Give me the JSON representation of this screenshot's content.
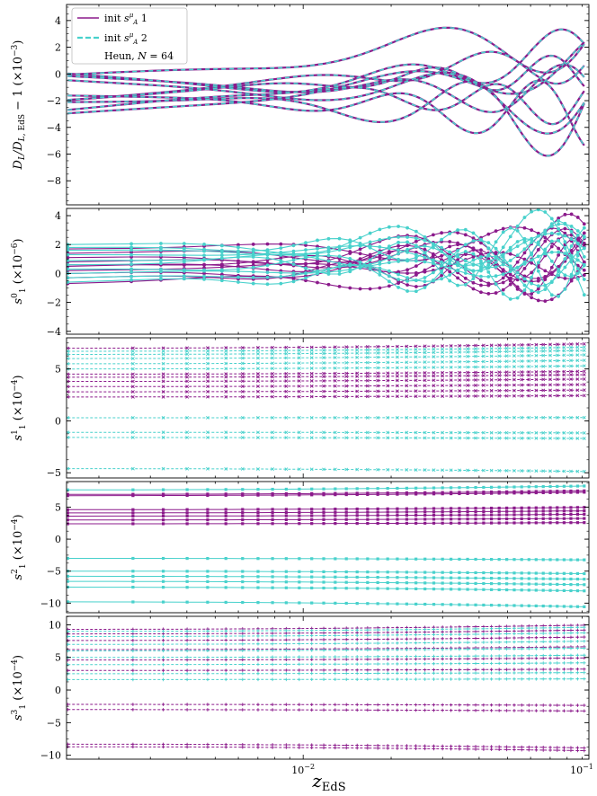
{
  "figure": {
    "xlabel_main": "z",
    "xlabel_sub": "EdS",
    "xscale": "log",
    "xlim": [
      0.00155,
      0.095
    ],
    "x_major_ticks": [
      {
        "value": 0.01,
        "base": "10",
        "exp": "−2"
      },
      {
        "value": 0.1,
        "base": "10",
        "exp": "−1"
      }
    ],
    "colors": {
      "init1": "#8b1a8b",
      "init2": "#48d1cc"
    },
    "legend": {
      "position": "top-left",
      "entries": [
        {
          "pre": "init ",
          "sym": "s",
          "sup": "μ",
          "sub": "A",
          "post": " 1",
          "style": "solid"
        },
        {
          "pre": "init ",
          "sym": "s",
          "sup": "μ",
          "sub": "A",
          "post": " 2",
          "style": "dashed"
        },
        {
          "text": "Heun, N = 64"
        }
      ]
    }
  },
  "chart_data": [
    {
      "type": "line",
      "panel": "DL",
      "ylabel": "D_L/D_L,EdS − 1  (×10^−3)",
      "ylim": [
        -9.8,
        5.2
      ],
      "yticks": [
        -8,
        -6,
        -4,
        -2,
        0,
        2,
        4
      ],
      "ytick_labels": [
        "−8",
        "−6",
        "−4",
        "−2",
        "0",
        "2",
        "4"
      ],
      "grid": false,
      "series_count": 10,
      "y_start": [
        0.1,
        -0.3,
        -1.7,
        -2.0,
        -2.3,
        -2.6,
        -0.5,
        -1.8,
        -0.1,
        -2.9
      ],
      "y_end": [
        3.0,
        -1.2,
        0.6,
        -2.5,
        -3.0,
        0.4,
        -1.5,
        -0.2,
        -2.0,
        2.0
      ],
      "marker": "none"
    },
    {
      "type": "line",
      "panel": "s10",
      "ylabel": "s_1^0  (×10^−6)",
      "ylim": [
        -4.2,
        4.5
      ],
      "yticks": [
        -4,
        -2,
        0,
        2,
        4
      ],
      "ytick_labels": [
        "−4",
        "−2",
        "0",
        "2",
        "4"
      ],
      "grid": false,
      "series_count_init1": 10,
      "series_count_init2": 10,
      "y_start_init1": [
        1.4,
        1.1,
        0.8,
        0.5,
        0.2,
        0.0,
        -0.3,
        -0.7,
        1.7,
        0.6
      ],
      "y_start_init2": [
        2.0,
        1.8,
        1.6,
        1.3,
        0.9,
        0.6,
        0.3,
        0.0,
        -0.3,
        -0.6
      ],
      "marker": "dot"
    },
    {
      "type": "line",
      "panel": "s11",
      "ylabel": "s_1^1  (×10^−4)",
      "ylim": [
        -5.5,
        8.0
      ],
      "yticks": [
        -5,
        0,
        5
      ],
      "ytick_labels": [
        "−5",
        "0",
        "5"
      ],
      "grid": false,
      "levels_init1": [
        2.3,
        2.8,
        3.3,
        3.8,
        4.2,
        4.5,
        7.0
      ],
      "levels_init2": [
        -4.6,
        -1.6,
        -1.1,
        0.3,
        5.0,
        5.5,
        6.0,
        6.4,
        6.7
      ],
      "marker": "x"
    },
    {
      "type": "line",
      "panel": "s12",
      "ylabel": "s_1^2  (×10^−4)",
      "ylim": [
        -11.5,
        9.0
      ],
      "yticks": [
        -10,
        -5,
        0,
        5
      ],
      "ytick_labels": [
        "−10",
        "−5",
        "0",
        "5"
      ],
      "grid": false,
      "levels_init1": [
        2.4,
        3.0,
        3.6,
        4.1,
        4.6,
        6.8,
        7.0
      ],
      "levels_init2": [
        -3.0,
        -5.0,
        -5.8,
        -6.6,
        -7.5,
        -9.8,
        7.7
      ],
      "marker": "square"
    },
    {
      "type": "line",
      "panel": "s13",
      "ylabel": "s_1^3  (×10^−4)",
      "ylim": [
        -10.6,
        11.3
      ],
      "yticks": [
        -10,
        -5,
        0,
        5,
        10
      ],
      "ytick_labels": [
        "−10",
        "−5",
        "0",
        "5",
        "10"
      ],
      "grid": false,
      "levels_init1": [
        -8.3,
        -8.7,
        -2.2,
        -3.0,
        3.0,
        4.6,
        6.2,
        7.6,
        8.6,
        9.3
      ],
      "levels_init2": [
        1.6,
        2.5,
        3.9,
        5.0,
        6.0,
        7.0,
        8.2,
        9.0
      ],
      "marker": "plus"
    }
  ]
}
